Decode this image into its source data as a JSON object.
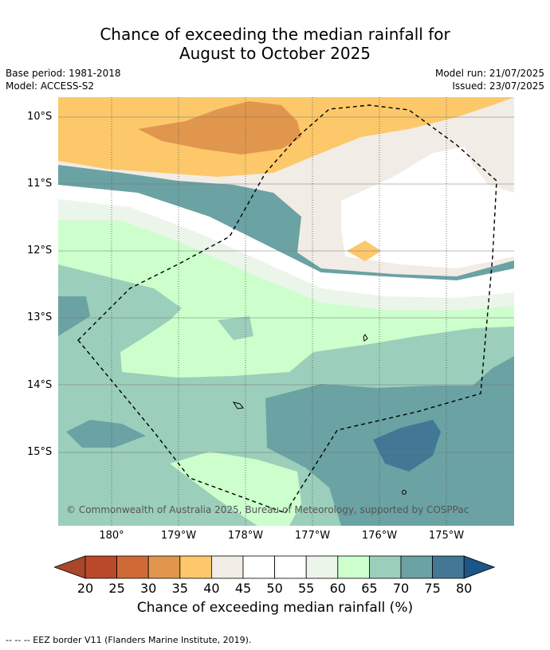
{
  "title_line1": "Chance of exceeding the median rainfall for",
  "title_line2": "August to October 2025",
  "meta": {
    "base_period": "Base period: 1981-2018",
    "model": "Model: ACCESS-S2",
    "model_run": "Model run: 21/07/2025",
    "issued": "Issued: 23/07/2025"
  },
  "axes": {
    "y_ticks": [
      "10°S",
      "11°S",
      "12°S",
      "13°S",
      "14°S",
      "15°S"
    ],
    "x_ticks": [
      "180°",
      "179°W",
      "178°W",
      "177°W",
      "176°W",
      "175°W"
    ]
  },
  "copyright": "© Commonwealth of Australia 2025, Bureau of Meteorology, supported by COSPPac",
  "colorbar": {
    "ticks": [
      "20",
      "25",
      "30",
      "35",
      "40",
      "45",
      "50",
      "55",
      "60",
      "65",
      "70",
      "75",
      "80"
    ],
    "label": "Chance of exceeding median rainfall (%)",
    "colors": [
      "#a8472a",
      "#b84a2a",
      "#cf6a37",
      "#e1964e",
      "#fcc86a",
      "#f1ece5",
      "#ffffff",
      "#ffffff",
      "#ebf5e9",
      "#ccffcc",
      "#9bcfbb",
      "#6ba2a4",
      "#427896",
      "#1c5688"
    ]
  },
  "footer": "--  --  -- EEZ border V11 (Flanders Marine Institute, 2019)."
}
